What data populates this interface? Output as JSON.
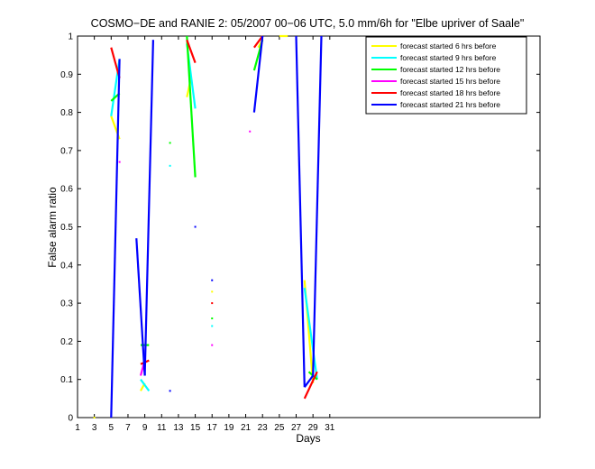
{
  "chart_data": {
    "type": "line",
    "title": "COSMO−DE and RANIE 2: 05/2007 00−06 UTC, 5.0 mm/6h for \"Elbe upriver of Saale\"",
    "xlabel": "Days",
    "ylabel": "False alarm ratio",
    "xlim": [
      1,
      56
    ],
    "ylim": [
      0,
      1
    ],
    "xticks": [
      1,
      3,
      5,
      7,
      9,
      11,
      13,
      15,
      17,
      19,
      21,
      23,
      25,
      27,
      29,
      31
    ],
    "yticks": [
      0,
      0.1,
      0.2,
      0.3,
      0.4,
      0.5,
      0.6,
      0.7,
      0.8,
      0.9,
      1
    ],
    "ytick_labels": [
      "0",
      "0.1",
      "0.2",
      "0.3",
      "0.4",
      "0.5",
      "0.6",
      "0.7",
      "0.8",
      "0.9",
      "1"
    ],
    "grid": false,
    "legend_position": "top-right",
    "series": [
      {
        "name": "forecast started 6 hrs before",
        "color": "#ffff00",
        "segments": [
          [
            [
              5,
              0.79
            ],
            [
              6,
              0.73
            ]
          ],
          [
            [
              8.5,
              0.07
            ],
            [
              9,
              0.09
            ]
          ],
          [
            [
              14,
              0.84
            ],
            [
              14.5,
              0.89
            ]
          ],
          [
            [
              22.5,
              0.97
            ],
            [
              23,
              0.99
            ]
          ],
          [
            [
              25,
              1.0
            ],
            [
              26,
              1.0
            ]
          ],
          [
            [
              28,
              0.36
            ],
            [
              29,
              0.09
            ]
          ]
        ],
        "points": [
          [
            3,
            0.0
          ],
          [
            17,
            0.33
          ]
        ]
      },
      {
        "name": "forecast started 9 hrs before",
        "color": "#00ffff",
        "segments": [
          [
            [
              5,
              0.79
            ],
            [
              6,
              0.94
            ]
          ],
          [
            [
              8.5,
              0.1
            ],
            [
              9.5,
              0.07
            ]
          ],
          [
            [
              14,
              0.98
            ],
            [
              15,
              0.81
            ]
          ],
          [
            [
              28,
              0.34
            ],
            [
              29.5,
              0.1
            ]
          ]
        ],
        "points": [
          [
            12,
            0.66
          ],
          [
            17,
            0.24
          ]
        ]
      },
      {
        "name": "forecast started 12 hrs before",
        "color": "#00ff00",
        "segments": [
          [
            [
              5,
              0.83
            ],
            [
              6,
              0.85
            ]
          ],
          [
            [
              8.5,
              0.19
            ],
            [
              9.5,
              0.19
            ]
          ],
          [
            [
              14,
              1.0
            ],
            [
              15,
              0.63
            ]
          ],
          [
            [
              22,
              0.91
            ],
            [
              23,
              0.99
            ]
          ],
          [
            [
              28.5,
              0.12
            ],
            [
              29.5,
              0.1
            ]
          ]
        ],
        "points": [
          [
            12,
            0.72
          ],
          [
            17,
            0.26
          ]
        ]
      },
      {
        "name": "forecast started 15 hrs before",
        "color": "#ff00ff",
        "segments": [
          [
            [
              8.5,
              0.11
            ],
            [
              9,
              0.15
            ]
          ]
        ],
        "points": [
          [
            6,
            0.67
          ],
          [
            17,
            0.19
          ],
          [
            21.5,
            0.75
          ]
        ]
      },
      {
        "name": "forecast started 18 hrs before",
        "color": "#ff0000",
        "segments": [
          [
            [
              5,
              0.97
            ],
            [
              6,
              0.89
            ]
          ],
          [
            [
              8.5,
              0.14
            ],
            [
              9.5,
              0.15
            ]
          ],
          [
            [
              14,
              0.99
            ],
            [
              15,
              0.93
            ]
          ],
          [
            [
              22,
              0.97
            ],
            [
              23,
              1.0
            ]
          ],
          [
            [
              28,
              0.05
            ],
            [
              29.5,
              0.12
            ]
          ]
        ],
        "points": [
          [
            17,
            0.3
          ]
        ]
      },
      {
        "name": "forecast started 21 hrs before",
        "color": "#0000ff",
        "segments": [
          [
            [
              5,
              0.0
            ],
            [
              6,
              0.94
            ]
          ],
          [
            [
              8,
              0.47
            ],
            [
              9,
              0.11
            ]
          ],
          [
            [
              9,
              0.11
            ],
            [
              10,
              0.99
            ]
          ],
          [
            [
              22,
              0.8
            ],
            [
              23,
              1.0
            ]
          ],
          [
            [
              27,
              1.0
            ],
            [
              28,
              0.08
            ]
          ],
          [
            [
              28,
              0.08
            ],
            [
              29,
              0.11
            ]
          ],
          [
            [
              29,
              0.11
            ],
            [
              30,
              1.0
            ]
          ]
        ],
        "points": [
          [
            12,
            0.07
          ],
          [
            15,
            0.5
          ],
          [
            17,
            0.36
          ]
        ]
      }
    ]
  }
}
